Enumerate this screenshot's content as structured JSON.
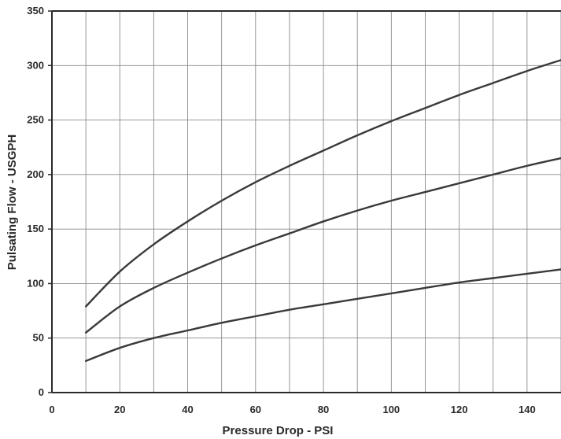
{
  "chart_data": {
    "type": "line",
    "title": "",
    "xlabel": "Pressure Drop - PSI",
    "ylabel": "Pulsating Flow - USGPH",
    "xlim": [
      0,
      150
    ],
    "ylim": [
      0,
      350
    ],
    "xticks": [
      0,
      20,
      40,
      60,
      80,
      100,
      120,
      140
    ],
    "yticks": [
      0,
      50,
      100,
      150,
      200,
      250,
      300,
      350
    ],
    "xgrid": [
      0,
      10,
      20,
      30,
      40,
      50,
      60,
      70,
      80,
      90,
      100,
      110,
      120,
      130,
      140,
      150
    ],
    "grid": true,
    "legend": "none",
    "series": [
      {
        "x": [
          10,
          20,
          30,
          40,
          50,
          60,
          70,
          80,
          90,
          100,
          110,
          120,
          130,
          140,
          150
        ],
        "values": [
          79,
          111,
          136,
          157,
          176,
          193,
          208,
          222,
          236,
          249,
          261,
          273,
          284,
          295,
          305
        ]
      },
      {
        "x": [
          10,
          20,
          30,
          40,
          50,
          60,
          70,
          80,
          90,
          100,
          110,
          120,
          130,
          140,
          150
        ],
        "values": [
          55,
          79,
          96,
          110,
          123,
          135,
          146,
          157,
          167,
          176,
          184,
          192,
          200,
          208,
          215
        ]
      },
      {
        "x": [
          10,
          20,
          30,
          40,
          50,
          60,
          70,
          80,
          90,
          100,
          110,
          120,
          130,
          140,
          150
        ],
        "values": [
          29,
          41,
          50,
          57,
          64,
          70,
          76,
          81,
          86,
          91,
          96,
          101,
          105,
          109,
          113
        ]
      }
    ],
    "colors": {
      "line": "#3a3a3a",
      "grid": "#8a8a8a",
      "axis": "#2a2a2a",
      "text": "#2a2a2a"
    }
  }
}
